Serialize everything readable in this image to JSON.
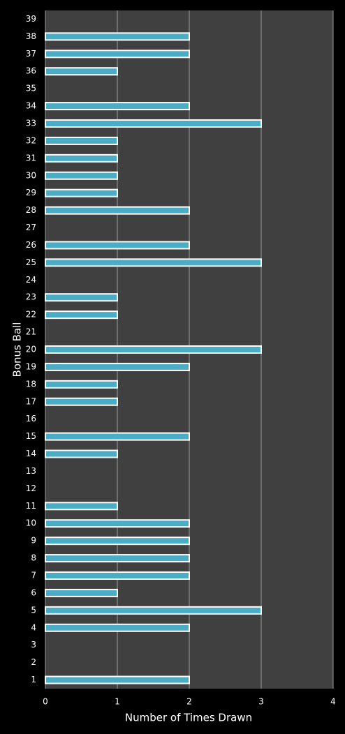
{
  "chart_data": {
    "type": "bar",
    "orientation": "horizontal",
    "x_label": "Number of Times Drawn",
    "y_label": "Bonus Ball",
    "categories": [
      "1",
      "2",
      "3",
      "4",
      "5",
      "6",
      "7",
      "8",
      "9",
      "10",
      "11",
      "12",
      "13",
      "14",
      "15",
      "16",
      "17",
      "18",
      "19",
      "20",
      "21",
      "22",
      "23",
      "24",
      "25",
      "26",
      "27",
      "28",
      "29",
      "30",
      "31",
      "32",
      "33",
      "34",
      "35",
      "36",
      "37",
      "38",
      "39"
    ],
    "values": [
      2,
      0,
      0,
      2,
      3,
      1,
      2,
      2,
      2,
      2,
      1,
      0,
      0,
      1,
      2,
      0,
      1,
      1,
      2,
      3,
      0,
      1,
      1,
      0,
      3,
      2,
      0,
      2,
      1,
      1,
      1,
      1,
      3,
      2,
      0,
      1,
      2,
      2,
      0
    ],
    "color": "#4bacc6",
    "xlim": [
      0,
      4
    ],
    "xticks": [
      0,
      1,
      2,
      3,
      4
    ],
    "grid": true
  }
}
